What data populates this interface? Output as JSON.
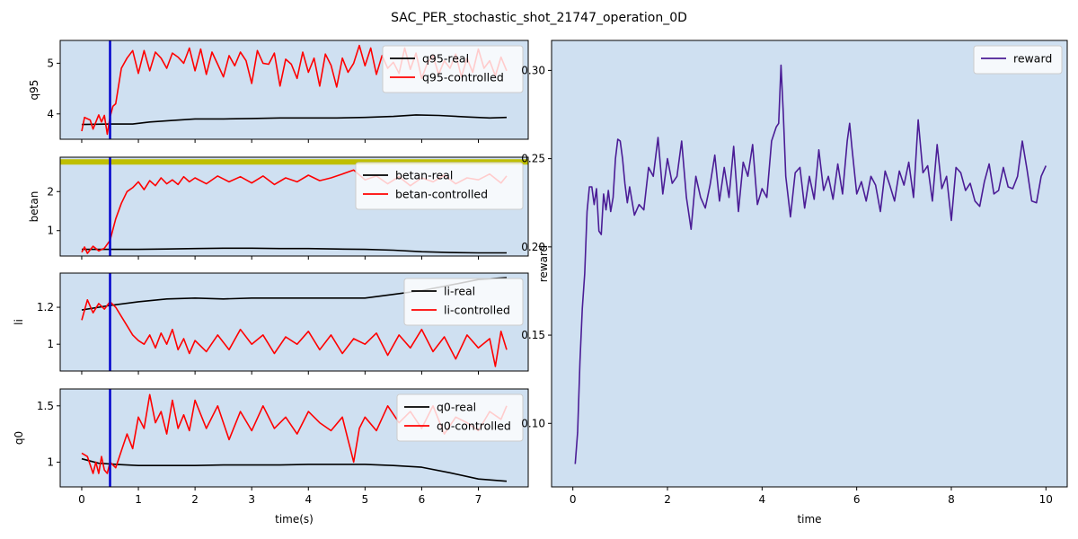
{
  "figure": {
    "title": "SAC_PER_stochastic_shot_21747_operation_0D",
    "background": "#ffffff",
    "axes_facecolor": "#cfe0f1"
  },
  "chart_data": [
    {
      "type": "line",
      "ylabel": "q95",
      "xlim": [
        -0.38,
        7.88
      ],
      "ylim": [
        3.5,
        5.45
      ],
      "yticks": [
        4,
        5
      ],
      "xticks": [
        0,
        1,
        2,
        3,
        4,
        5,
        6,
        7
      ],
      "show_xticklabels": false,
      "vline": {
        "x": 0.5,
        "color": "#0000cc"
      },
      "legend": "top-right",
      "series": [
        {
          "name": "q95-real",
          "color": "#000000",
          "x": [
            0,
            0.5,
            0.9,
            1.2,
            1.6,
            2.0,
            2.5,
            3.0,
            3.5,
            4.0,
            4.5,
            5.0,
            5.5,
            5.9,
            6.3,
            6.8,
            7.2,
            7.5
          ],
          "values": [
            3.79,
            3.8,
            3.8,
            3.84,
            3.87,
            3.9,
            3.9,
            3.91,
            3.92,
            3.92,
            3.92,
            3.93,
            3.95,
            3.98,
            3.97,
            3.94,
            3.92,
            3.93
          ]
        },
        {
          "name": "q95-controlled",
          "color": "#ff0000",
          "x": [
            0,
            0.05,
            0.15,
            0.2,
            0.3,
            0.35,
            0.4,
            0.45,
            0.5,
            0.55,
            0.6,
            0.7,
            0.8,
            0.9,
            1.0,
            1.1,
            1.2,
            1.3,
            1.4,
            1.5,
            1.6,
            1.7,
            1.8,
            1.9,
            2.0,
            2.1,
            2.2,
            2.3,
            2.4,
            2.5,
            2.6,
            2.7,
            2.8,
            2.9,
            3.0,
            3.1,
            3.2,
            3.3,
            3.4,
            3.5,
            3.6,
            3.7,
            3.8,
            3.9,
            4.0,
            4.1,
            4.2,
            4.3,
            4.4,
            4.5,
            4.6,
            4.7,
            4.8,
            4.9,
            5.0,
            5.1,
            5.2,
            5.3,
            5.4,
            5.5,
            5.6,
            5.7,
            5.8,
            5.9,
            6.0,
            6.1,
            6.2,
            6.3,
            6.4,
            6.5,
            6.6,
            6.7,
            6.8,
            6.9,
            7.0,
            7.1,
            7.2,
            7.3,
            7.4,
            7.5
          ],
          "values": [
            3.66,
            3.93,
            3.88,
            3.7,
            3.98,
            3.84,
            3.97,
            3.6,
            3.94,
            4.15,
            4.2,
            4.9,
            5.1,
            5.25,
            4.8,
            5.25,
            4.85,
            5.22,
            5.1,
            4.9,
            5.2,
            5.12,
            5.0,
            5.3,
            4.85,
            5.28,
            4.78,
            5.22,
            4.98,
            4.73,
            5.15,
            4.95,
            5.22,
            5.05,
            4.6,
            5.25,
            5.0,
            4.98,
            5.2,
            4.55,
            5.08,
            4.98,
            4.7,
            5.22,
            4.82,
            5.1,
            4.55,
            5.18,
            4.96,
            4.53,
            5.1,
            4.82,
            5.0,
            5.35,
            4.95,
            5.3,
            4.78,
            5.15,
            4.9,
            5.02,
            4.8,
            5.3,
            4.88,
            5.2,
            4.7,
            5.0,
            5.15,
            4.78,
            5.05,
            4.9,
            5.18,
            4.73,
            5.1,
            4.82,
            5.28,
            4.9,
            5.05,
            4.75,
            5.12,
            4.85
          ]
        }
      ]
    },
    {
      "type": "line",
      "ylabel": "betan",
      "xlim": [
        -0.38,
        7.88
      ],
      "ylim": [
        0.35,
        2.88
      ],
      "yticks": [
        1,
        2
      ],
      "xticks": [
        0,
        1,
        2,
        3,
        4,
        5,
        6,
        7
      ],
      "show_xticklabels": false,
      "vline": {
        "x": 0.5,
        "color": "#0000cc"
      },
      "hline": {
        "y": 2.76,
        "color": "#bfbf00"
      },
      "legend": "top-right",
      "series": [
        {
          "name": "betan-real",
          "color": "#000000",
          "x": [
            0,
            0.5,
            1.0,
            1.5,
            2.0,
            2.5,
            3.0,
            3.5,
            4.0,
            4.5,
            5.0,
            5.5,
            6.0,
            6.5,
            7.0,
            7.5
          ],
          "values": [
            0.52,
            0.52,
            0.52,
            0.53,
            0.54,
            0.55,
            0.55,
            0.54,
            0.54,
            0.53,
            0.52,
            0.5,
            0.46,
            0.44,
            0.43,
            0.43
          ]
        },
        {
          "name": "betan-controlled",
          "color": "#ff0000",
          "x": [
            0,
            0.05,
            0.1,
            0.2,
            0.3,
            0.4,
            0.5,
            0.6,
            0.7,
            0.8,
            0.9,
            1.0,
            1.1,
            1.2,
            1.3,
            1.4,
            1.5,
            1.6,
            1.7,
            1.8,
            1.9,
            2.0,
            2.2,
            2.4,
            2.6,
            2.8,
            3.0,
            3.2,
            3.4,
            3.6,
            3.8,
            4.0,
            4.2,
            4.4,
            4.6,
            4.8,
            5.0,
            5.2,
            5.4,
            5.6,
            5.8,
            6.0,
            6.2,
            6.4,
            6.6,
            6.8,
            7.0,
            7.2,
            7.4,
            7.5
          ],
          "values": [
            0.45,
            0.58,
            0.42,
            0.6,
            0.48,
            0.55,
            0.75,
            1.3,
            1.7,
            2.0,
            2.1,
            2.25,
            2.05,
            2.28,
            2.15,
            2.35,
            2.2,
            2.3,
            2.18,
            2.38,
            2.25,
            2.35,
            2.2,
            2.4,
            2.25,
            2.38,
            2.22,
            2.4,
            2.18,
            2.35,
            2.25,
            2.42,
            2.28,
            2.35,
            2.45,
            2.55,
            2.3,
            2.4,
            2.2,
            2.38,
            2.15,
            2.35,
            2.25,
            2.42,
            2.2,
            2.35,
            2.3,
            2.45,
            2.22,
            2.4
          ]
        }
      ]
    },
    {
      "type": "line",
      "ylabel": "li",
      "xlim": [
        -0.38,
        7.88
      ],
      "ylim": [
        0.855,
        1.385
      ],
      "yticks": [
        1.0,
        1.2
      ],
      "xticks": [
        0,
        1,
        2,
        3,
        4,
        5,
        6,
        7
      ],
      "show_xticklabels": false,
      "vline": {
        "x": 0.5,
        "color": "#0000cc"
      },
      "legend": "top-right",
      "series": [
        {
          "name": "li-real",
          "color": "#000000",
          "x": [
            0,
            0.5,
            1.0,
            1.5,
            2.0,
            2.5,
            3.0,
            3.5,
            4.0,
            4.5,
            5.0,
            5.5,
            6.0,
            6.5,
            7.0,
            7.5
          ],
          "values": [
            1.185,
            1.21,
            1.23,
            1.245,
            1.25,
            1.245,
            1.25,
            1.25,
            1.25,
            1.25,
            1.25,
            1.27,
            1.29,
            1.32,
            1.35,
            1.36
          ]
        },
        {
          "name": "li-controlled",
          "color": "#ff0000",
          "x": [
            0,
            0.1,
            0.2,
            0.3,
            0.4,
            0.5,
            0.6,
            0.7,
            0.8,
            0.9,
            1.0,
            1.1,
            1.2,
            1.3,
            1.4,
            1.5,
            1.6,
            1.7,
            1.8,
            1.9,
            2.0,
            2.2,
            2.4,
            2.6,
            2.8,
            3.0,
            3.2,
            3.4,
            3.6,
            3.8,
            4.0,
            4.2,
            4.4,
            4.6,
            4.8,
            5.0,
            5.2,
            5.4,
            5.6,
            5.8,
            6.0,
            6.2,
            6.4,
            6.6,
            6.8,
            7.0,
            7.2,
            7.3,
            7.4,
            7.5
          ],
          "values": [
            1.13,
            1.24,
            1.17,
            1.22,
            1.19,
            1.23,
            1.2,
            1.15,
            1.1,
            1.05,
            1.02,
            1.0,
            1.05,
            0.98,
            1.06,
            1.0,
            1.08,
            0.97,
            1.03,
            0.95,
            1.02,
            0.96,
            1.05,
            0.97,
            1.08,
            1.0,
            1.05,
            0.95,
            1.04,
            1.0,
            1.07,
            0.97,
            1.05,
            0.95,
            1.03,
            1.0,
            1.06,
            0.94,
            1.05,
            0.98,
            1.08,
            0.96,
            1.04,
            0.92,
            1.05,
            0.98,
            1.03,
            0.88,
            1.07,
            0.97
          ]
        }
      ]
    },
    {
      "type": "line",
      "ylabel": "q0",
      "xlim": [
        -0.38,
        7.88
      ],
      "ylim": [
        0.78,
        1.65
      ],
      "yticks": [
        1.0,
        1.5
      ],
      "xticks": [
        0,
        1,
        2,
        3,
        4,
        5,
        6,
        7
      ],
      "show_xticklabels": true,
      "xlabel": "time(s)",
      "vline": {
        "x": 0.5,
        "color": "#0000cc"
      },
      "legend": "top-right",
      "series": [
        {
          "name": "q0-real",
          "color": "#000000",
          "x": [
            0,
            0.3,
            0.6,
            1.0,
            1.5,
            2.0,
            2.5,
            3.0,
            3.5,
            4.0,
            4.5,
            5.0,
            5.5,
            6.0,
            6.5,
            7.0,
            7.5
          ],
          "values": [
            1.03,
            0.99,
            0.98,
            0.97,
            0.97,
            0.97,
            0.975,
            0.975,
            0.975,
            0.98,
            0.98,
            0.98,
            0.97,
            0.955,
            0.905,
            0.85,
            0.83
          ]
        },
        {
          "name": "q0-controlled",
          "color": "#ff0000",
          "x": [
            0,
            0.1,
            0.2,
            0.25,
            0.3,
            0.35,
            0.4,
            0.45,
            0.5,
            0.6,
            0.7,
            0.8,
            0.9,
            1.0,
            1.1,
            1.2,
            1.3,
            1.4,
            1.5,
            1.6,
            1.7,
            1.8,
            1.9,
            2.0,
            2.2,
            2.4,
            2.6,
            2.8,
            3.0,
            3.2,
            3.4,
            3.6,
            3.8,
            4.0,
            4.2,
            4.4,
            4.6,
            4.7,
            4.75,
            4.8,
            4.9,
            5.0,
            5.2,
            5.4,
            5.6,
            5.8,
            6.0,
            6.2,
            6.4,
            6.6,
            6.8,
            7.0,
            7.2,
            7.4,
            7.5
          ],
          "values": [
            1.08,
            1.05,
            0.9,
            1.0,
            0.9,
            1.05,
            0.93,
            0.9,
            1.0,
            0.95,
            1.1,
            1.25,
            1.12,
            1.4,
            1.3,
            1.6,
            1.35,
            1.45,
            1.25,
            1.55,
            1.3,
            1.42,
            1.28,
            1.55,
            1.3,
            1.5,
            1.2,
            1.45,
            1.28,
            1.5,
            1.3,
            1.4,
            1.25,
            1.45,
            1.35,
            1.28,
            1.4,
            1.2,
            1.1,
            1.0,
            1.3,
            1.4,
            1.28,
            1.5,
            1.35,
            1.45,
            1.3,
            1.5,
            1.25,
            1.4,
            1.35,
            1.28,
            1.45,
            1.38,
            1.5
          ]
        }
      ]
    },
    {
      "type": "line",
      "xlabel": "time",
      "ylabel": "reward",
      "xlim": [
        -0.45,
        10.45
      ],
      "ylim": [
        0.064,
        0.317
      ],
      "yticks": [
        0.1,
        0.15,
        0.2,
        0.25,
        0.3
      ],
      "xticks": [
        0,
        2,
        4,
        6,
        8,
        10
      ],
      "show_xticklabels": true,
      "legend": "top-right",
      "series": [
        {
          "name": "reward",
          "color": "#4b1d96",
          "x": [
            0.05,
            0.1,
            0.15,
            0.2,
            0.25,
            0.3,
            0.35,
            0.4,
            0.45,
            0.5,
            0.55,
            0.6,
            0.65,
            0.7,
            0.75,
            0.8,
            0.85,
            0.9,
            0.95,
            1.0,
            1.05,
            1.1,
            1.15,
            1.2,
            1.3,
            1.4,
            1.5,
            1.6,
            1.7,
            1.8,
            1.9,
            2.0,
            2.1,
            2.2,
            2.3,
            2.4,
            2.5,
            2.6,
            2.7,
            2.8,
            2.9,
            3.0,
            3.1,
            3.2,
            3.3,
            3.4,
            3.5,
            3.6,
            3.7,
            3.8,
            3.9,
            4.0,
            4.1,
            4.2,
            4.3,
            4.35,
            4.4,
            4.45,
            4.5,
            4.6,
            4.7,
            4.8,
            4.9,
            5.0,
            5.1,
            5.2,
            5.3,
            5.4,
            5.5,
            5.6,
            5.7,
            5.8,
            5.85,
            5.9,
            6.0,
            6.1,
            6.2,
            6.3,
            6.4,
            6.5,
            6.6,
            6.7,
            6.8,
            6.9,
            7.0,
            7.1,
            7.2,
            7.3,
            7.4,
            7.5,
            7.6,
            7.7,
            7.8,
            7.9,
            8.0,
            8.1,
            8.2,
            8.3,
            8.4,
            8.5,
            8.6,
            8.7,
            8.8,
            8.9,
            9.0,
            9.1,
            9.2,
            9.3,
            9.4,
            9.5,
            9.6,
            9.7,
            9.8,
            9.9,
            10.0
          ],
          "values": [
            0.077,
            0.095,
            0.135,
            0.165,
            0.185,
            0.22,
            0.234,
            0.234,
            0.224,
            0.233,
            0.209,
            0.207,
            0.23,
            0.221,
            0.232,
            0.22,
            0.228,
            0.25,
            0.261,
            0.26,
            0.25,
            0.236,
            0.225,
            0.234,
            0.218,
            0.224,
            0.221,
            0.245,
            0.24,
            0.262,
            0.23,
            0.25,
            0.236,
            0.24,
            0.26,
            0.228,
            0.21,
            0.24,
            0.228,
            0.222,
            0.235,
            0.252,
            0.226,
            0.245,
            0.228,
            0.257,
            0.22,
            0.248,
            0.24,
            0.258,
            0.224,
            0.233,
            0.228,
            0.26,
            0.268,
            0.27,
            0.303,
            0.275,
            0.24,
            0.217,
            0.242,
            0.245,
            0.222,
            0.24,
            0.227,
            0.255,
            0.232,
            0.24,
            0.227,
            0.247,
            0.23,
            0.26,
            0.27,
            0.256,
            0.23,
            0.237,
            0.226,
            0.24,
            0.235,
            0.22,
            0.243,
            0.235,
            0.226,
            0.243,
            0.235,
            0.248,
            0.228,
            0.272,
            0.242,
            0.246,
            0.226,
            0.258,
            0.233,
            0.24,
            0.215,
            0.245,
            0.242,
            0.232,
            0.236,
            0.226,
            0.223,
            0.237,
            0.247,
            0.23,
            0.232,
            0.245,
            0.234,
            0.233,
            0.24,
            0.26,
            0.244,
            0.226,
            0.225,
            0.24,
            0.246
          ]
        }
      ]
    }
  ]
}
